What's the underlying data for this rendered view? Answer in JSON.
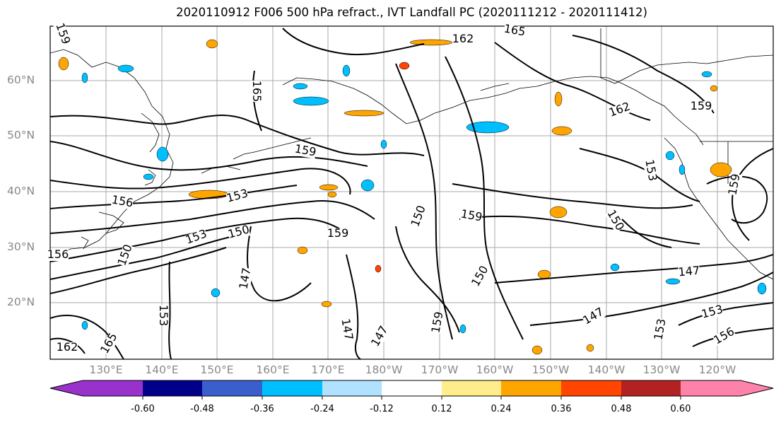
{
  "title": "2020110912 F006 500 hPa refract., IVT Landfall PC (2020111212 - 2020111412)",
  "map": {
    "lat_labels": [
      "60°N",
      "50°N",
      "40°N",
      "30°N",
      "20°N"
    ],
    "lon_labels": [
      "130°E",
      "140°E",
      "150°E",
      "160°E",
      "170°E",
      "180°W",
      "170°W",
      "160°W",
      "150°W",
      "140°W",
      "130°W",
      "120°W"
    ],
    "contour_labels": [
      "159",
      "165",
      "162",
      "165",
      "162",
      "159",
      "159",
      "156",
      "153",
      "153",
      "150",
      "159",
      "159",
      "150",
      "150",
      "147",
      "147",
      "147",
      "147",
      "153",
      "150",
      "153",
      "159",
      "153",
      "156",
      "162",
      "165",
      "159",
      "156",
      "153",
      "150",
      "147"
    ]
  },
  "colorbar": {
    "colors": [
      "#9932cc",
      "#00008b",
      "#3a5fcd",
      "#00bfff",
      "#b0e2ff",
      "#ffffff",
      "#ffffff",
      "#ffec8b",
      "#ffa500",
      "#ff4500",
      "#b22222",
      "#ff82ab"
    ],
    "tick_labels": [
      "-0.60",
      "-0.48",
      "-0.36",
      "-0.24",
      "-0.12",
      "0.12",
      "0.24",
      "0.36",
      "0.48",
      "0.60"
    ]
  }
}
